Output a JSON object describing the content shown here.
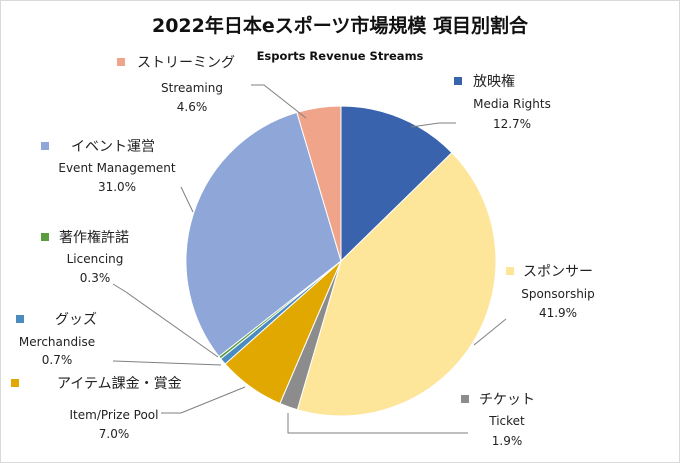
{
  "chart_data": {
    "type": "pie",
    "title": "2022年日本eスポーツ市場規模 項目別割合",
    "subtitle": "Esports Revenue Streams",
    "slices": [
      {
        "jp": "放映権",
        "en": "Media Rights",
        "pct_label": "12.7%",
        "value": 12.7,
        "color": "#3a63ad"
      },
      {
        "jp": "スポンサー",
        "en": "Sponsorship",
        "pct_label": "41.9%",
        "value": 41.9,
        "color": "#fde599"
      },
      {
        "jp": "チケット",
        "en": "Ticket",
        "pct_label": "1.9%",
        "value": 1.9,
        "color": "#8c8c8c"
      },
      {
        "jp": "アイテム課金・賞金",
        "en": "Item/Prize Pool",
        "pct_label": "7.0%",
        "value": 7.0,
        "color": "#e0a800"
      },
      {
        "jp": "グッズ",
        "en": "Merchandise",
        "pct_label": "0.7%",
        "value": 0.7,
        "color": "#4a8cc0"
      },
      {
        "jp": "著作権許諾",
        "en": "Licencing",
        "pct_label": "0.3%",
        "value": 0.3,
        "color": "#5b9c3f"
      },
      {
        "jp": "イベント運営",
        "en": "Event Management",
        "pct_label": "31.0%",
        "value": 31.0,
        "color": "#8ea6d8"
      },
      {
        "jp": "ストリーミング",
        "en": "Streaming",
        "pct_label": "4.6%",
        "value": 4.6,
        "color": "#f0a48a"
      }
    ]
  }
}
